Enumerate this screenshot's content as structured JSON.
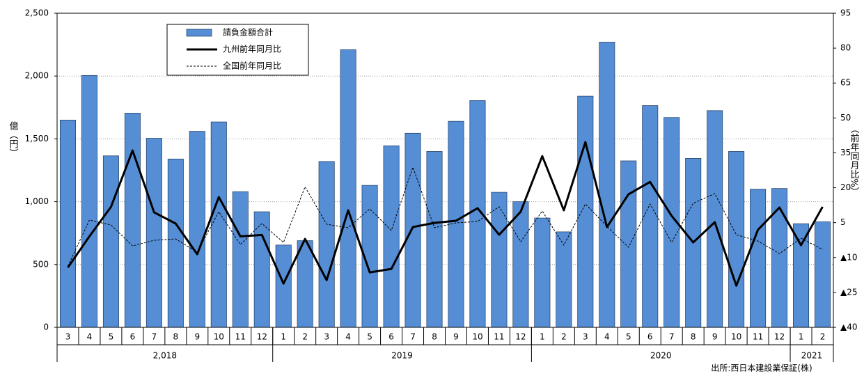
{
  "chart_data": {
    "type": "bar_line",
    "y_label": "億（円）",
    "y2_label": "（前年同月比%）",
    "source": "出所:西日本建設業保証(株)",
    "categories": [
      "3",
      "4",
      "5",
      "6",
      "7",
      "8",
      "9",
      "10",
      "11",
      "12",
      "1",
      "2",
      "3",
      "4",
      "5",
      "6",
      "7",
      "8",
      "9",
      "10",
      "11",
      "12",
      "1",
      "2",
      "3",
      "4",
      "5",
      "6",
      "7",
      "8",
      "9",
      "10",
      "11",
      "12",
      "1",
      "2"
    ],
    "category_groups": [
      {
        "label": "2,018",
        "size": 10
      },
      {
        "label": "2019",
        "size": 12
      },
      {
        "label": "2020",
        "size": 12
      },
      {
        "label": "2021",
        "size": 2
      }
    ],
    "ylim": [
      0,
      2500
    ],
    "yticks": [
      0,
      500,
      {
        "value": 1000,
        "label": "1,000"
      },
      {
        "value": 1500,
        "label": "1,500"
      },
      {
        "value": 2000,
        "label": "2,000"
      },
      {
        "value": 2500,
        "label": "2,500"
      }
    ],
    "y2lim": [
      -40,
      95
    ],
    "y2ticks": [
      {
        "value": -40,
        "label": "▲40"
      },
      {
        "value": -25,
        "label": "▲25"
      },
      {
        "value": -10,
        "label": "▲10"
      },
      5,
      20,
      35,
      50,
      65,
      80,
      95
    ],
    "grid": true,
    "legend": "upper left",
    "series": [
      {
        "name": "請負金額合計",
        "type": "bar",
        "color": "#558ed5",
        "values": [
          1650,
          2005,
          1365,
          1705,
          1505,
          1340,
          1560,
          1635,
          1080,
          920,
          655,
          690,
          1320,
          2210,
          1130,
          1445,
          1545,
          1400,
          1640,
          1805,
          1075,
          1000,
          870,
          760,
          1840,
          2270,
          1325,
          1765,
          1670,
          1345,
          1725,
          1400,
          1100,
          1105,
          825,
          840
        ]
      },
      {
        "name": "九州前年同月比",
        "type": "line",
        "axis": "y2",
        "color": "#000000",
        "line_width": 3,
        "values": [
          -14.3,
          -0.9,
          11.8,
          36,
          9.4,
          4.6,
          -8.6,
          16,
          -0.9,
          -0.3,
          -21.2,
          -2,
          -19.7,
          10.3,
          -16.4,
          -14.9,
          3.1,
          4.9,
          5.8,
          11.2,
          -0.2,
          9.7,
          33.6,
          10.3,
          39.6,
          3.1,
          17.2,
          22.5,
          7.9,
          -3.5,
          5.2,
          -22.1,
          1.9,
          11.5,
          -4.7,
          11.8
        ]
      },
      {
        "name": "全国前年同月比",
        "type": "line",
        "axis": "y2",
        "color": "#000000",
        "line_width": 1,
        "dashed": true,
        "values": [
          -13.7,
          6.1,
          4,
          -5,
          -2.6,
          -2,
          -7.7,
          9.7,
          -4.4,
          4.6,
          -3.5,
          20.4,
          4.3,
          2.8,
          10.9,
          1.6,
          28.8,
          2.8,
          4.9,
          5.5,
          11.8,
          -3.2,
          10,
          -4.7,
          13,
          3.4,
          -5.6,
          13,
          -3.5,
          13.3,
          17.5,
          -0.2,
          -2.9,
          -8.3,
          -1.7,
          -6.5
        ]
      }
    ]
  }
}
